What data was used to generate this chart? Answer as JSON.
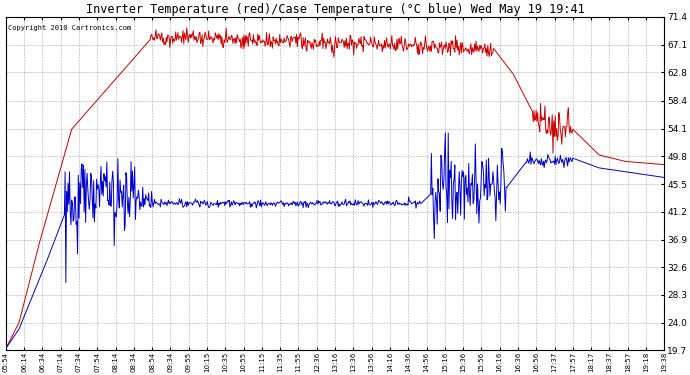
{
  "title": "Inverter Temperature (red)/Case Temperature (°C blue) Wed May 19 19:41",
  "copyright": "Copyright 2010 Cartronics.com",
  "y_ticks": [
    19.7,
    24.0,
    28.3,
    32.6,
    36.9,
    41.2,
    45.5,
    49.8,
    54.1,
    58.4,
    62.8,
    67.1,
    71.4
  ],
  "y_min": 19.7,
  "y_max": 71.4,
  "bg_color": "#ffffff",
  "grid_color": "#aaaaaa",
  "red_color": "#cc0000",
  "blue_color": "#0000cc",
  "x_labels": [
    "05:54",
    "06:14",
    "06:34",
    "07:14",
    "07:34",
    "07:54",
    "08:14",
    "08:34",
    "08:54",
    "09:34",
    "09:55",
    "10:15",
    "10:35",
    "10:55",
    "11:15",
    "11:35",
    "11:55",
    "12:36",
    "13:16",
    "13:36",
    "13:56",
    "14:16",
    "14:36",
    "14:56",
    "15:16",
    "15:36",
    "15:56",
    "16:16",
    "16:36",
    "16:56",
    "17:37",
    "17:57",
    "18:17",
    "18:37",
    "18:57",
    "19:18",
    "19:38"
  ],
  "n": 900,
  "red_noise_std": 0.5,
  "blue_base_noise": 0.2
}
